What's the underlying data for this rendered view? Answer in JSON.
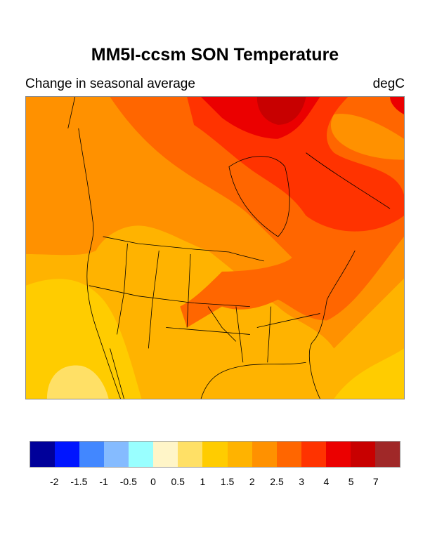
{
  "title": "MM5I-ccsm SON Temperature",
  "subtitle_left": "Change in seasonal average",
  "subtitle_right": "degC",
  "colorbar": {
    "labels": [
      "-2",
      "-1.5",
      "-1",
      "-0.5",
      "0",
      "0.5",
      "1",
      "1.5",
      "2",
      "2.5",
      "3",
      "4",
      "5",
      "7"
    ],
    "colors": [
      "#00009a",
      "#0015ff",
      "#4287ff",
      "#85bbff",
      "#99ffff",
      "#fff5c8",
      "#ffe066",
      "#ffcc00",
      "#ffb300",
      "#ff9100",
      "#ff6600",
      "#ff3300",
      "#eb0000",
      "#c80000",
      "#a02828"
    ]
  }
}
